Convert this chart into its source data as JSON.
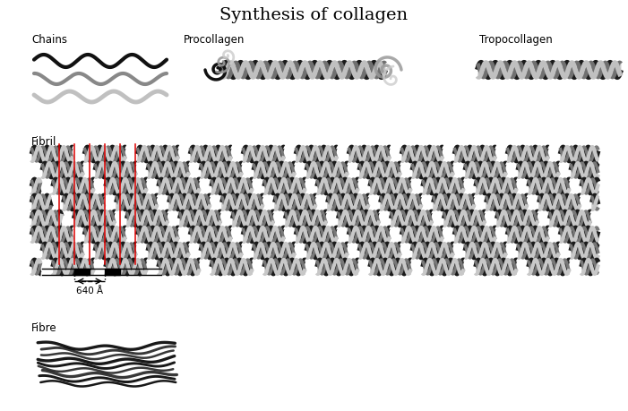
{
  "title": "Synthesis of collagen",
  "title_fontsize": 14,
  "bg_color": "#ffffff",
  "label_chains": "Chains",
  "label_procollagen": "Procollagen",
  "label_tropocollagen": "Tropocollagen",
  "label_fibril": "Fibril",
  "label_fibre": "Fibre",
  "label_640": "640 Å",
  "red_line_color": "#dd0000",
  "figsize": [
    7.01,
    4.59
  ],
  "dpi": 100
}
